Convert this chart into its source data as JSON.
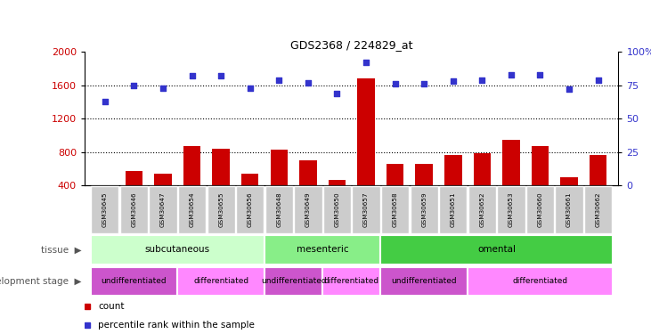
{
  "title": "GDS2368 / 224829_at",
  "samples": [
    "GSM30645",
    "GSM30646",
    "GSM30647",
    "GSM30654",
    "GSM30655",
    "GSM30656",
    "GSM30648",
    "GSM30649",
    "GSM30650",
    "GSM30657",
    "GSM30658",
    "GSM30659",
    "GSM30651",
    "GSM30652",
    "GSM30653",
    "GSM30660",
    "GSM30661",
    "GSM30662"
  ],
  "counts": [
    375,
    575,
    535,
    870,
    840,
    540,
    830,
    700,
    460,
    1680,
    660,
    660,
    760,
    780,
    940,
    870,
    500,
    760
  ],
  "percentile_ranks": [
    63,
    75,
    73,
    82,
    82,
    73,
    79,
    77,
    69,
    92,
    76,
    76,
    78,
    79,
    83,
    83,
    72,
    79
  ],
  "ylim_left": [
    400,
    2000
  ],
  "ylim_right": [
    0,
    100
  ],
  "yticks_left": [
    400,
    800,
    1200,
    1600,
    2000
  ],
  "yticks_right": [
    0,
    25,
    50,
    75,
    100
  ],
  "bar_color": "#cc0000",
  "dot_color": "#3333cc",
  "tissue_groups": [
    {
      "label": "subcutaneous",
      "start": 0,
      "end": 6,
      "color": "#ccffcc"
    },
    {
      "label": "mesenteric",
      "start": 6,
      "end": 10,
      "color": "#88ee88"
    },
    {
      "label": "omental",
      "start": 10,
      "end": 18,
      "color": "#44cc44"
    }
  ],
  "dev_stage_groups": [
    {
      "label": "undifferentiated",
      "start": 0,
      "end": 3,
      "color": "#cc55cc"
    },
    {
      "label": "differentiated",
      "start": 3,
      "end": 6,
      "color": "#ff88ff"
    },
    {
      "label": "undifferentiated",
      "start": 6,
      "end": 8,
      "color": "#cc55cc"
    },
    {
      "label": "differentiated",
      "start": 8,
      "end": 10,
      "color": "#ff88ff"
    },
    {
      "label": "undifferentiated",
      "start": 10,
      "end": 13,
      "color": "#cc55cc"
    },
    {
      "label": "differentiated",
      "start": 13,
      "end": 18,
      "color": "#ff88ff"
    }
  ],
  "legend_count_color": "#cc0000",
  "legend_pct_color": "#3333cc",
  "yaxis_left_color": "#cc0000",
  "yaxis_right_color": "#3333cc",
  "background_color": "#ffffff",
  "tick_label_bg": "#cccccc",
  "bar_bottom": 400
}
